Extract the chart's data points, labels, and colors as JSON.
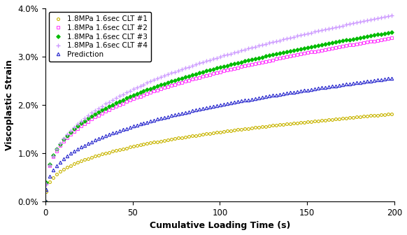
{
  "xlabel": "Cumulative Loading Time (s)",
  "ylabel": "Viscoplastic Strain",
  "xlim": [
    0,
    200
  ],
  "ylim": [
    0.0,
    0.04
  ],
  "yticks": [
    0.0,
    0.01,
    0.02,
    0.03,
    0.04
  ],
  "ytick_labels": [
    "0.0%",
    "1.0%",
    "2.0%",
    "3.0%",
    "4.0%"
  ],
  "xticks": [
    0,
    50,
    100,
    150,
    200
  ],
  "series": [
    {
      "label": "1.8MPa 1.6sec CLT #1",
      "color": "#c8b400",
      "marker": "o",
      "ms": 2.8,
      "mfc": "none",
      "A": 0.003,
      "alpha": 0.34
    },
    {
      "label": "1.8MPa 1.6sec CLT #2",
      "color": "#ff44ff",
      "marker": "s",
      "ms": 2.8,
      "mfc": "none",
      "A": 0.0056,
      "alpha": 0.34
    },
    {
      "label": "1.8MPa 1.6sec CLT #3",
      "color": "#00bb00",
      "marker": "D",
      "ms": 2.8,
      "mfc": "#00bb00",
      "A": 0.0058,
      "alpha": 0.34
    },
    {
      "label": "1.8MPa 1.6sec CLT #4",
      "color": "#cc99ff",
      "marker": "+",
      "ms": 3.8,
      "mfc": "#cc99ff",
      "A": 0.0055,
      "alpha": 0.368
    },
    {
      "label": "Prediction",
      "color": "#2222cc",
      "marker": "^",
      "ms": 3.2,
      "mfc": "none",
      "A": 0.0038,
      "alpha": 0.36
    }
  ],
  "background_color": "#ffffff",
  "legend_fontsize": 7.5,
  "axis_label_fontsize": 9,
  "tick_fontsize": 8.5
}
